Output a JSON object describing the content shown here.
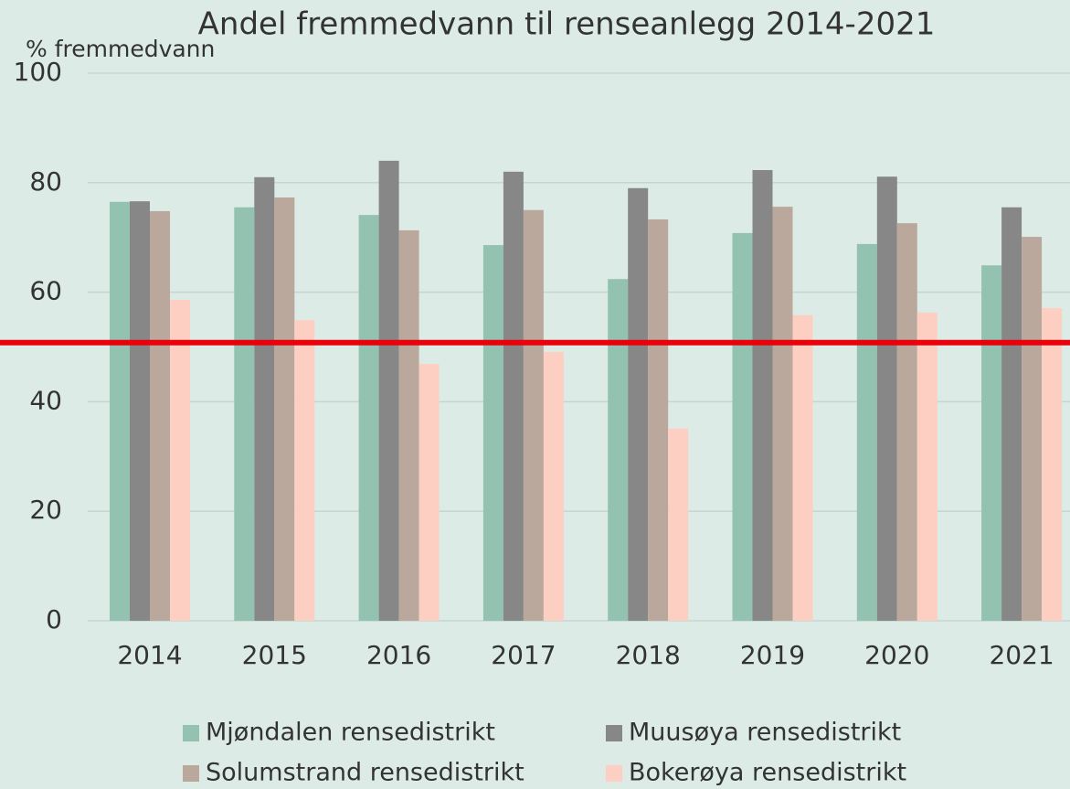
{
  "chart_data": {
    "type": "bar",
    "title": "Andel fremmedvann til renseanlegg 2014-2021",
    "y_label": "% fremmedvann",
    "categories": [
      "2014",
      "2015",
      "2016",
      "2017",
      "2018",
      "2019",
      "2020",
      "2021"
    ],
    "series": [
      {
        "name": "Mjøndalen rensedistrikt",
        "color": "#93c2b0",
        "values": [
          76.5,
          75.5,
          74.1,
          68.6,
          62.4,
          70.8,
          68.8,
          64.9
        ]
      },
      {
        "name": "Muusøya rensedistrikt",
        "color": "#878787",
        "values": [
          76.6,
          81,
          84,
          82,
          79,
          82.3,
          81.1,
          75.5
        ]
      },
      {
        "name": "Solumstrand rensedistrikt",
        "color": "#b9a89b",
        "values": [
          74.8,
          77.3,
          71.3,
          75,
          73.3,
          75.6,
          72.6,
          70.1
        ]
      },
      {
        "name": "Bokerøya rensedistrikt",
        "color": "#fdcfc2",
        "values": [
          58.6,
          54.9,
          46.9,
          49.1,
          35.1,
          55.8,
          56.3,
          57.1
        ]
      }
    ],
    "reference_line": {
      "value": 50.8,
      "color": "#e8000b"
    },
    "ylim": [
      0,
      100
    ],
    "yticks": [
      0,
      20,
      40,
      60,
      80,
      100
    ],
    "grid": true,
    "legend": "bottom"
  }
}
